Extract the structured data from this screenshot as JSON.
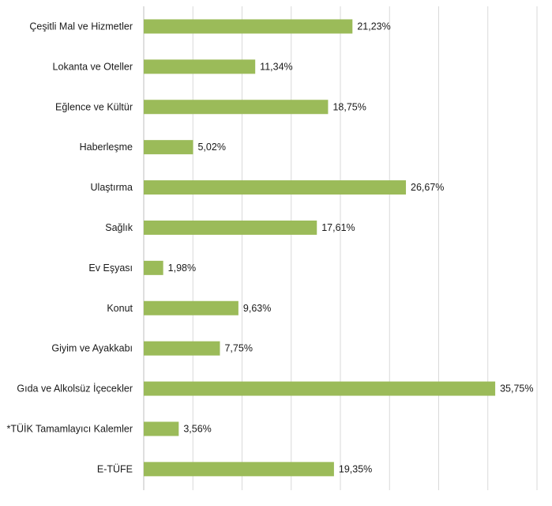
{
  "chart_data": {
    "type": "bar",
    "orientation": "horizontal",
    "categories": [
      "Çeşitli Mal ve Hizmetler",
      "Lokanta ve Oteller",
      "Eğlence ve Kültür",
      "Haberleşme",
      "Ulaştırma",
      "Sağlık",
      "Ev Eşyası",
      "Konut",
      "Giyim ve Ayakkabı",
      "Gıda ve Alkolsüz İçecekler",
      "*TÜİK Tamamlayıcı Kalemler",
      "E-TÜFE"
    ],
    "values": [
      21.23,
      11.34,
      18.75,
      5.02,
      26.67,
      17.61,
      1.98,
      9.63,
      7.75,
      35.75,
      3.56,
      19.35
    ],
    "value_labels": [
      "21,23%",
      "11,34%",
      "18,75%",
      "5,02%",
      "26,67%",
      "17,61%",
      "1,98%",
      "9,63%",
      "7,75%",
      "35,75%",
      "3,56%",
      "19,35%"
    ],
    "xlim": [
      0,
      40
    ],
    "grid": true,
    "legend": "none",
    "colors": {
      "bar": "#9bbb59",
      "grid": "#d9d9d9",
      "axis": "#bfbfbf",
      "text": "#1a1a1a"
    }
  }
}
